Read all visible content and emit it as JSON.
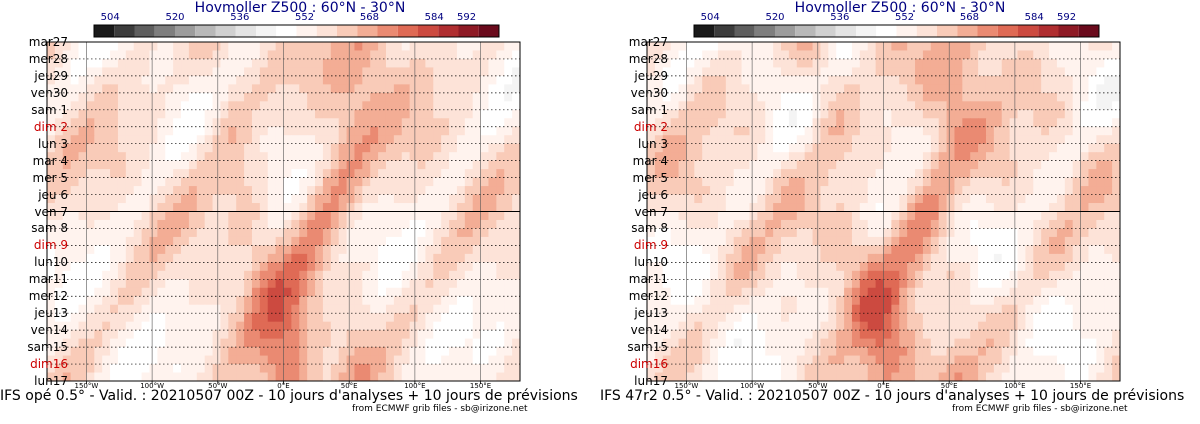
{
  "colors": {
    "title": "#000080",
    "sunday": "#cc0000",
    "scale": [
      "#1a1a1a",
      "#3c3c3c",
      "#5e5e5e",
      "#7e7e7e",
      "#9c9c9c",
      "#b8b8b8",
      "#d0d0d0",
      "#e4e4e4",
      "#f4f4f4",
      "#ffffff",
      "#fff3ee",
      "#fde3d8",
      "#f9cbb8",
      "#f3ad95",
      "#ea8a72",
      "#df6a55",
      "#cc4a40",
      "#b02e30",
      "#8e1a25",
      "#6a0a1c"
    ]
  },
  "panels": [
    {
      "title": "Hovmoller Z500 : 60°N - 30°N",
      "caption": "IFS opé 0.5° - Valid. : 20210507 00Z - 10 jours d'analyses + 10 jours de prévisions",
      "source": "from ECMWF grib files - sb@irizone.net"
    },
    {
      "title": "Hovmoller Z500 : 60°N - 30°N",
      "caption": "IFS 47r2 0.5° - Valid. : 20210507 00Z - 10 jours d'analyses + 10 jours de prévisions",
      "source": "from ECMWF grib files - sb@irizone.net"
    }
  ],
  "chart_data": {
    "type": "heatmap",
    "title": "Hovmoller Z500 : 60°N - 30°N",
    "colorbar": {
      "ticks": [
        "504",
        "520",
        "536",
        "552",
        "568",
        "584",
        "592"
      ],
      "tick_values": [
        504,
        520,
        536,
        552,
        568,
        584,
        592
      ],
      "range": [
        500,
        600
      ],
      "step": 5
    },
    "xrange": [
      -180,
      180
    ],
    "x_ticks": [
      -150,
      -100,
      -50,
      0,
      50,
      100,
      150
    ],
    "x_tick_labels": [
      "150°W",
      "100°W",
      "50°W",
      "0°E",
      "50°E",
      "100°E",
      "150°E"
    ],
    "y_labels": [
      "mar27",
      "mer28",
      "jeu29",
      "ven30",
      "sam 1",
      "dim 2",
      "lun 3",
      "mar 4",
      "mer 5",
      "jeu 6",
      "ven 7",
      "sam 8",
      "dim 9",
      "lun10",
      "mar11",
      "mer12",
      "jeu13",
      "ven14",
      "sam15",
      "dim16",
      "lun17"
    ],
    "sunday_labels": [
      "dim 2",
      "dim 9",
      "dim16"
    ],
    "analysis_forecast_split": "ven 7"
  }
}
